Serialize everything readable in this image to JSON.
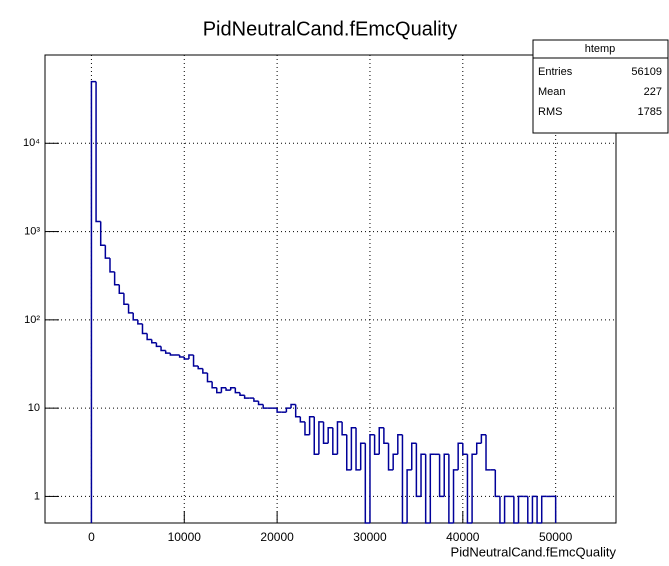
{
  "chart_data": {
    "type": "histogram",
    "title": "PidNeutralCand.fEmcQuality",
    "x_label": "PidNeutralCand.fEmcQuality",
    "stats": {
      "title": "htemp",
      "rows": [
        [
          "Entries",
          "56109"
        ],
        [
          "Mean",
          "227"
        ],
        [
          "RMS",
          "1785"
        ]
      ]
    },
    "color": "#000099",
    "log_y": true,
    "grid": true,
    "xlim": [
      -5000,
      56500
    ],
    "ylim": [
      0.5,
      100000
    ],
    "xticks": [
      0,
      10000,
      20000,
      30000,
      40000,
      50000
    ],
    "yticks": [
      1,
      10,
      {
        "value": 100,
        "label": "10²"
      },
      {
        "value": 1000,
        "label": "10³"
      },
      {
        "value": 10000,
        "label": "10⁴"
      }
    ],
    "bins": [
      0,
      500,
      1000,
      1500,
      2000,
      2500,
      3000,
      3500,
      4000,
      4500,
      5000,
      5500,
      6000,
      6500,
      7000,
      7500,
      8000,
      8500,
      9000,
      9500,
      10000,
      10500,
      11000,
      11500,
      12000,
      12500,
      13000,
      13500,
      14000,
      14500,
      15000,
      15500,
      16000,
      16500,
      17000,
      17500,
      18000,
      18500,
      19000,
      19500,
      20000,
      20500,
      21000,
      21500,
      22000,
      22500,
      23000,
      23500,
      24000,
      24500,
      25000,
      25500,
      26000,
      26500,
      27000,
      27500,
      28000,
      28500,
      29000,
      29500,
      30000,
      30500,
      31000,
      31500,
      32000,
      32500,
      33000,
      33500,
      34000,
      34500,
      35000,
      35500,
      36000,
      36500,
      37000,
      37500,
      38000,
      38500,
      39000,
      39500,
      40000,
      40500,
      41000,
      41500,
      42000,
      42500,
      43000,
      43500,
      44000,
      44500,
      45000,
      45500,
      46000,
      46500,
      47000,
      47500,
      48000,
      48500,
      49000,
      49500,
      50000
    ],
    "values": [
      50000,
      1300,
      700,
      500,
      350,
      250,
      200,
      150,
      120,
      100,
      90,
      70,
      60,
      55,
      50,
      45,
      42,
      40,
      40,
      38,
      36,
      40,
      30,
      28,
      25,
      20,
      17,
      15,
      17,
      16,
      17,
      15,
      14,
      13,
      13,
      12,
      11,
      10,
      10,
      10,
      9,
      9,
      10,
      11,
      8,
      7,
      5,
      8,
      3,
      7,
      4,
      6,
      3,
      7,
      5,
      2,
      6,
      2,
      4,
      0,
      5,
      3,
      6,
      4,
      2,
      3,
      5,
      0,
      2,
      4,
      1,
      3,
      0,
      3,
      3,
      1,
      3,
      0,
      2,
      4,
      3,
      0,
      3,
      4,
      5,
      2,
      2,
      1,
      0,
      1,
      1,
      0,
      1,
      1,
      0,
      1,
      0,
      1,
      1,
      1
    ]
  }
}
